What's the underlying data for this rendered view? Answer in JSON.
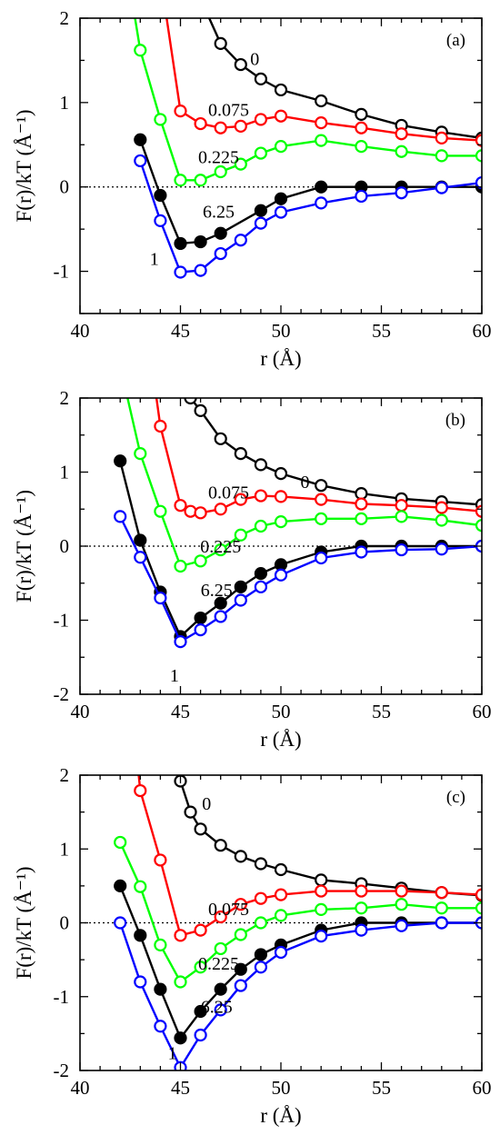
{
  "chart_data": [
    {
      "type": "line",
      "panel_label": "(a)",
      "xlabel": "r (Å)",
      "ylabel": "F(r)/kT (Å⁻¹)",
      "xlim": [
        40,
        60
      ],
      "ylim": [
        -1.5,
        2
      ],
      "xticks": [
        40,
        45,
        50,
        55,
        60
      ],
      "yticks": [
        -1,
        0,
        1,
        2
      ],
      "grid": false,
      "zero_line": true,
      "series": [
        {
          "name": "0",
          "color": "#000000",
          "marker": "open-circle",
          "points": [
            [
              45.3,
              2.6
            ],
            [
              47,
              1.7
            ],
            [
              48,
              1.45
            ],
            [
              49,
              1.28
            ],
            [
              50,
              1.15
            ],
            [
              52,
              1.02
            ],
            [
              54,
              0.86
            ],
            [
              56,
              0.73
            ],
            [
              58,
              0.65
            ],
            [
              60,
              0.58
            ]
          ]
        },
        {
          "name": "0.075",
          "color": "#ff0000",
          "marker": "open-circle",
          "points": [
            [
              44,
              2.5
            ],
            [
              45,
              0.9
            ],
            [
              46,
              0.75
            ],
            [
              47,
              0.7
            ],
            [
              48,
              0.72
            ],
            [
              49,
              0.8
            ],
            [
              50,
              0.84
            ],
            [
              52,
              0.76
            ],
            [
              54,
              0.7
            ],
            [
              56,
              0.63
            ],
            [
              58,
              0.58
            ],
            [
              60,
              0.55
            ]
          ]
        },
        {
          "name": "0.225",
          "color": "#00ff00",
          "marker": "open-circle",
          "points": [
            [
              42.6,
              2.2
            ],
            [
              43,
              1.62
            ],
            [
              44,
              0.8
            ],
            [
              45,
              0.08
            ],
            [
              46,
              0.08
            ],
            [
              47,
              0.18
            ],
            [
              48,
              0.27
            ],
            [
              49,
              0.4
            ],
            [
              50,
              0.48
            ],
            [
              52,
              0.55
            ],
            [
              54,
              0.48
            ],
            [
              56,
              0.42
            ],
            [
              58,
              0.37
            ],
            [
              60,
              0.37
            ]
          ]
        },
        {
          "name": "6.25",
          "color": "#000000",
          "marker": "filled-circle",
          "points": [
            [
              43,
              0.56
            ],
            [
              44,
              -0.1
            ],
            [
              45,
              -0.67
            ],
            [
              46,
              -0.65
            ],
            [
              47,
              -0.55
            ],
            [
              49,
              -0.28
            ],
            [
              50,
              -0.14
            ],
            [
              52,
              0.0
            ],
            [
              54,
              0.0
            ],
            [
              56,
              0.0
            ],
            [
              58,
              0.0
            ],
            [
              60,
              0.0
            ]
          ]
        },
        {
          "name": "1",
          "color": "#0000ff",
          "marker": "open-circle",
          "points": [
            [
              43,
              0.31
            ],
            [
              44,
              -0.4
            ],
            [
              45,
              -1.01
            ],
            [
              46,
              -0.99
            ],
            [
              47,
              -0.79
            ],
            [
              48,
              -0.63
            ],
            [
              49,
              -0.43
            ],
            [
              50,
              -0.3
            ],
            [
              52,
              -0.19
            ],
            [
              54,
              -0.11
            ],
            [
              56,
              -0.07
            ],
            [
              58,
              -0.01
            ],
            [
              60,
              0.05
            ]
          ]
        }
      ],
      "annotations": [
        {
          "text": "0",
          "x": 48.7,
          "y": 1.52
        },
        {
          "text": "0.075",
          "x": 47.4,
          "y": 0.92
        },
        {
          "text": "0.225",
          "x": 46.9,
          "y": 0.36
        },
        {
          "text": "6.25",
          "x": 46.9,
          "y": -0.29
        },
        {
          "text": "1",
          "x": 43.7,
          "y": -0.85
        }
      ]
    },
    {
      "type": "line",
      "panel_label": "(b)",
      "xlabel": "r (Å)",
      "ylabel": "F(r)/kT (Å⁻¹)",
      "xlim": [
        40,
        60
      ],
      "ylim": [
        -2,
        2
      ],
      "xticks": [
        40,
        45,
        50,
        55,
        60
      ],
      "yticks": [
        -2,
        -1,
        0,
        1,
        2
      ],
      "grid": false,
      "zero_line": true,
      "series": [
        {
          "name": "0",
          "color": "#000000",
          "marker": "open-circle",
          "points": [
            [
              45.5,
              2.0
            ],
            [
              46,
              1.83
            ],
            [
              47,
              1.45
            ],
            [
              48,
              1.25
            ],
            [
              49,
              1.1
            ],
            [
              50,
              0.98
            ],
            [
              52,
              0.82
            ],
            [
              54,
              0.71
            ],
            [
              56,
              0.64
            ],
            [
              58,
              0.6
            ],
            [
              60,
              0.56
            ]
          ]
        },
        {
          "name": "0.075",
          "color": "#ff0000",
          "marker": "open-circle",
          "points": [
            [
              43.5,
              2.6
            ],
            [
              44,
              1.62
            ],
            [
              45,
              0.55
            ],
            [
              45.5,
              0.47
            ],
            [
              46,
              0.45
            ],
            [
              47,
              0.5
            ],
            [
              48,
              0.63
            ],
            [
              49,
              0.68
            ],
            [
              50,
              0.67
            ],
            [
              52,
              0.63
            ],
            [
              54,
              0.57
            ],
            [
              56,
              0.55
            ],
            [
              58,
              0.52
            ],
            [
              60,
              0.47
            ]
          ]
        },
        {
          "name": "0.225",
          "color": "#00ff00",
          "marker": "open-circle",
          "points": [
            [
              42.2,
              2.2
            ],
            [
              43,
              1.25
            ],
            [
              44,
              0.47
            ],
            [
              45,
              -0.27
            ],
            [
              46,
              -0.2
            ],
            [
              47,
              -0.05
            ],
            [
              48,
              0.15
            ],
            [
              49,
              0.27
            ],
            [
              50,
              0.33
            ],
            [
              52,
              0.37
            ],
            [
              54,
              0.37
            ],
            [
              56,
              0.4
            ],
            [
              58,
              0.35
            ],
            [
              60,
              0.28
            ]
          ]
        },
        {
          "name": "6.25",
          "color": "#000000",
          "marker": "filled-circle",
          "points": [
            [
              42,
              1.15
            ],
            [
              43,
              0.08
            ],
            [
              44,
              -0.62
            ],
            [
              45,
              -1.22
            ],
            [
              46,
              -0.97
            ],
            [
              47,
              -0.77
            ],
            [
              48,
              -0.55
            ],
            [
              49,
              -0.37
            ],
            [
              50,
              -0.25
            ],
            [
              52,
              -0.08
            ],
            [
              54,
              0.0
            ],
            [
              56,
              0.0
            ],
            [
              58,
              0.0
            ],
            [
              60,
              0.0
            ]
          ]
        },
        {
          "name": "1",
          "color": "#0000ff",
          "marker": "open-circle",
          "points": [
            [
              42,
              0.4
            ],
            [
              43,
              -0.15
            ],
            [
              44,
              -0.7
            ],
            [
              45,
              -1.29
            ],
            [
              46,
              -1.13
            ],
            [
              47,
              -0.95
            ],
            [
              48,
              -0.73
            ],
            [
              49,
              -0.55
            ],
            [
              50,
              -0.39
            ],
            [
              52,
              -0.16
            ],
            [
              54,
              -0.08
            ],
            [
              56,
              -0.05
            ],
            [
              58,
              -0.04
            ],
            [
              60,
              0.0
            ]
          ]
        }
      ],
      "annotations": [
        {
          "text": "0",
          "x": 51.2,
          "y": 0.87
        },
        {
          "text": "0.075",
          "x": 47.4,
          "y": 0.73
        },
        {
          "text": "0.225",
          "x": 47.0,
          "y": 0.0
        },
        {
          "text": "6.25",
          "x": 46.8,
          "y": -0.59
        },
        {
          "text": "1",
          "x": 44.7,
          "y": -1.74
        }
      ]
    },
    {
      "type": "line",
      "panel_label": "(c)",
      "xlabel": "r (Å)",
      "ylabel": "F(r)/kT (Å⁻¹)",
      "xlim": [
        40,
        60
      ],
      "ylim": [
        -2,
        2
      ],
      "xticks": [
        40,
        45,
        50,
        55,
        60
      ],
      "yticks": [
        -2,
        -1,
        0,
        1,
        2
      ],
      "grid": false,
      "zero_line": true,
      "series": [
        {
          "name": "0",
          "color": "#000000",
          "marker": "open-circle",
          "points": [
            [
              44.8,
              2.4
            ],
            [
              45,
              1.92
            ],
            [
              45.5,
              1.5
            ],
            [
              46,
              1.27
            ],
            [
              47,
              1.05
            ],
            [
              48,
              0.9
            ],
            [
              49,
              0.8
            ],
            [
              50,
              0.72
            ],
            [
              52,
              0.58
            ],
            [
              54,
              0.53
            ],
            [
              56,
              0.47
            ],
            [
              58,
              0.41
            ],
            [
              60,
              0.37
            ]
          ]
        },
        {
          "name": "0.075",
          "color": "#ff0000",
          "marker": "open-circle",
          "points": [
            [
              42.7,
              2.6
            ],
            [
              43,
              1.79
            ],
            [
              44,
              0.85
            ],
            [
              45,
              -0.17
            ],
            [
              46,
              -0.1
            ],
            [
              47,
              0.08
            ],
            [
              48,
              0.25
            ],
            [
              49,
              0.33
            ],
            [
              50,
              0.38
            ],
            [
              52,
              0.43
            ],
            [
              54,
              0.43
            ],
            [
              56,
              0.43
            ],
            [
              58,
              0.41
            ],
            [
              60,
              0.38
            ]
          ]
        },
        {
          "name": "0.225",
          "color": "#00ff00",
          "marker": "open-circle",
          "points": [
            [
              42,
              1.09
            ],
            [
              43,
              0.49
            ],
            [
              44,
              -0.3
            ],
            [
              45,
              -0.8
            ],
            [
              46,
              -0.6
            ],
            [
              47,
              -0.35
            ],
            [
              48,
              -0.16
            ],
            [
              49,
              0.0
            ],
            [
              50,
              0.1
            ],
            [
              52,
              0.18
            ],
            [
              54,
              0.2
            ],
            [
              56,
              0.25
            ],
            [
              58,
              0.2
            ],
            [
              60,
              0.2
            ]
          ]
        },
        {
          "name": "6.25",
          "color": "#000000",
          "marker": "filled-circle",
          "points": [
            [
              42,
              0.5
            ],
            [
              43,
              -0.17
            ],
            [
              44,
              -0.9
            ],
            [
              45,
              -1.56
            ],
            [
              46,
              -1.2
            ],
            [
              47,
              -0.9
            ],
            [
              48,
              -0.63
            ],
            [
              49,
              -0.43
            ],
            [
              50,
              -0.3
            ],
            [
              52,
              -0.1
            ],
            [
              54,
              0.0
            ],
            [
              56,
              0.0
            ],
            [
              58,
              0.0
            ],
            [
              60,
              0.0
            ]
          ]
        },
        {
          "name": "1",
          "color": "#0000ff",
          "marker": "open-circle",
          "points": [
            [
              42,
              0.0
            ],
            [
              43,
              -0.8
            ],
            [
              44,
              -1.4
            ],
            [
              45,
              -1.96
            ],
            [
              46,
              -1.52
            ],
            [
              47,
              -1.18
            ],
            [
              48,
              -0.85
            ],
            [
              49,
              -0.6
            ],
            [
              50,
              -0.4
            ],
            [
              52,
              -0.18
            ],
            [
              54,
              -0.1
            ],
            [
              56,
              -0.04
            ],
            [
              58,
              0.0
            ],
            [
              60,
              0.0
            ]
          ]
        }
      ],
      "annotations": [
        {
          "text": "0",
          "x": 46.3,
          "y": 1.62
        },
        {
          "text": "0.075",
          "x": 47.4,
          "y": 0.19
        },
        {
          "text": "0.225",
          "x": 46.9,
          "y": -0.55
        },
        {
          "text": "6.25",
          "x": 46.8,
          "y": -1.13
        },
        {
          "text": "1",
          "x": 44.6,
          "y": -1.76
        }
      ]
    }
  ]
}
